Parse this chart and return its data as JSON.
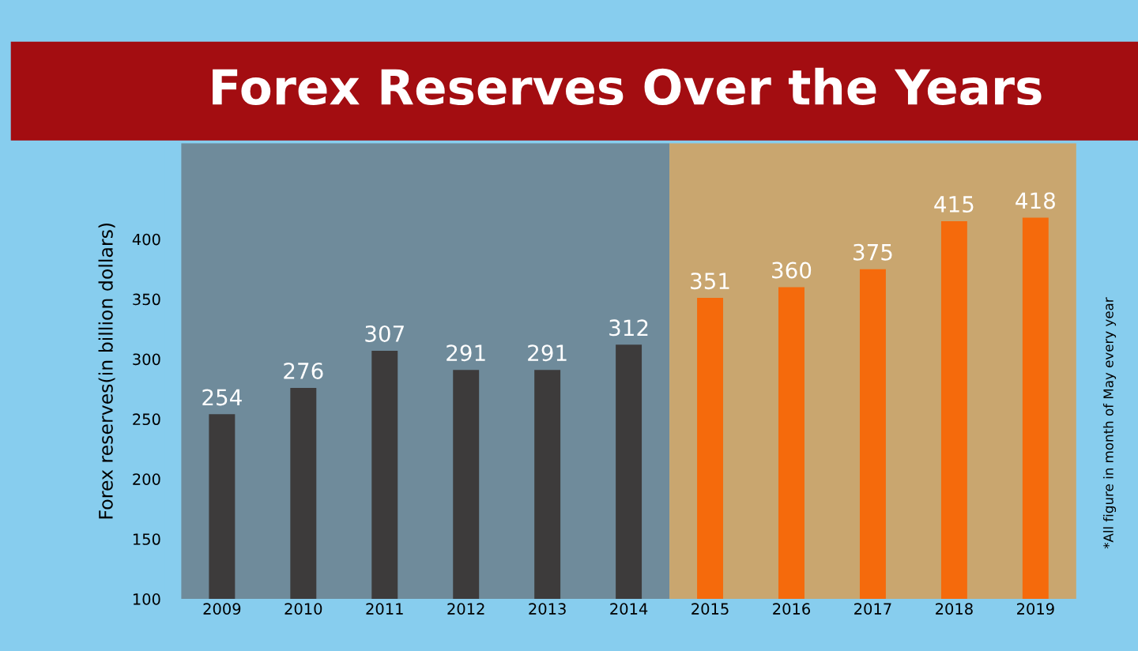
{
  "chart_data": {
    "type": "bar",
    "title": "Forex Reserves Over the Years",
    "ylabel": "Forex reserves(in billion dollars)",
    "annotations": [
      "*All figure in month of May every year"
    ],
    "categories": [
      "2009",
      "2010",
      "2011",
      "2012",
      "2013",
      "2014",
      "2015",
      "2016",
      "2017",
      "2018",
      "2019"
    ],
    "values": [
      254,
      276,
      307,
      291,
      291,
      312,
      351,
      360,
      375,
      415,
      418
    ],
    "colors": [
      "#3d3b3b",
      "#3d3b3b",
      "#3d3b3b",
      "#3d3b3b",
      "#3d3b3b",
      "#3d3b3b",
      "#f56a0c",
      "#f56a0c",
      "#f56a0c",
      "#f56a0c",
      "#f56a0c"
    ],
    "bands": [
      {
        "axis": "x",
        "from": "2009",
        "to": "2014",
        "color": "#6f8b9b"
      },
      {
        "axis": "x",
        "from": "2015",
        "to": "2019",
        "color": "#c9a66f"
      }
    ],
    "ylim": [
      100,
      480
    ],
    "yticks": [
      100,
      150,
      200,
      250,
      300,
      350,
      400
    ],
    "data_labels": true,
    "grid": false,
    "legend": false
  }
}
